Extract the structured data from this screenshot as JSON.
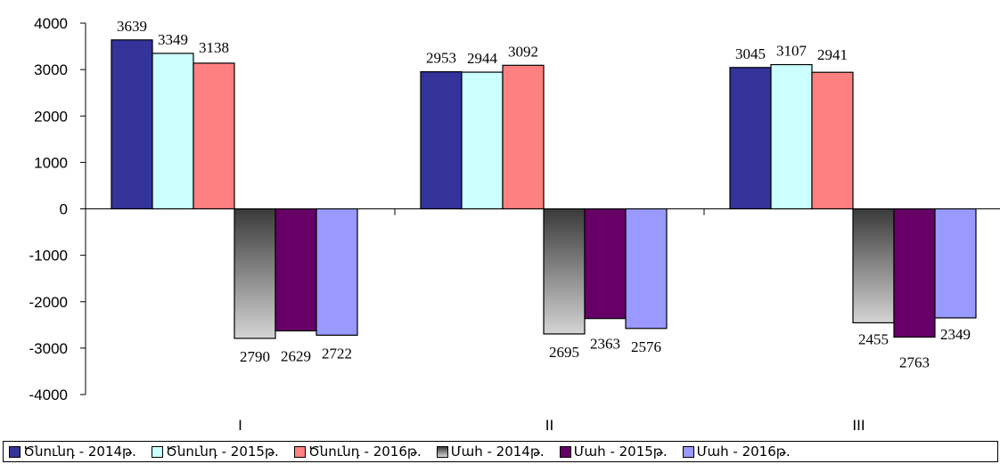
{
  "chart_data": {
    "type": "bar",
    "categories": [
      "I",
      "II",
      "III"
    ],
    "ylim": [
      -4000,
      4000
    ],
    "yticks": [
      4000,
      3000,
      2000,
      1000,
      0,
      -1000,
      -2000,
      -3000,
      -4000
    ],
    "series": [
      {
        "name": "Ծնունդ - 2014թ.",
        "values": [
          3639,
          2953,
          3045
        ],
        "labels": [
          "3639",
          "2953",
          "3045"
        ],
        "color": "#333399"
      },
      {
        "name": "Ծնունդ - 2015թ.",
        "values": [
          3349,
          2944,
          3107
        ],
        "labels": [
          "3349",
          "2944",
          "3107"
        ],
        "color": "#CCFFFF"
      },
      {
        "name": "Ծնունդ - 2016թ.",
        "values": [
          3138,
          3092,
          2941
        ],
        "labels": [
          "3138",
          "3092",
          "2941"
        ],
        "color": "#FF8080"
      },
      {
        "name": "Մահ - 2014թ.",
        "values": [
          -2790,
          -2695,
          -2455
        ],
        "labels": [
          "2790",
          "2695",
          "2455"
        ],
        "color": "#808080"
      },
      {
        "name": "Մահ - 2015թ.",
        "values": [
          -2629,
          -2363,
          -2763
        ],
        "labels": [
          "2629",
          "2363",
          "2763"
        ],
        "color": "#660066"
      },
      {
        "name": "Մահ - 2016թ.",
        "values": [
          -2722,
          -2576,
          -2349
        ],
        "labels": [
          "2722",
          "2576",
          "2349"
        ],
        "color": "#9999FF"
      }
    ],
    "legend_position": "bottom",
    "grid": false
  }
}
